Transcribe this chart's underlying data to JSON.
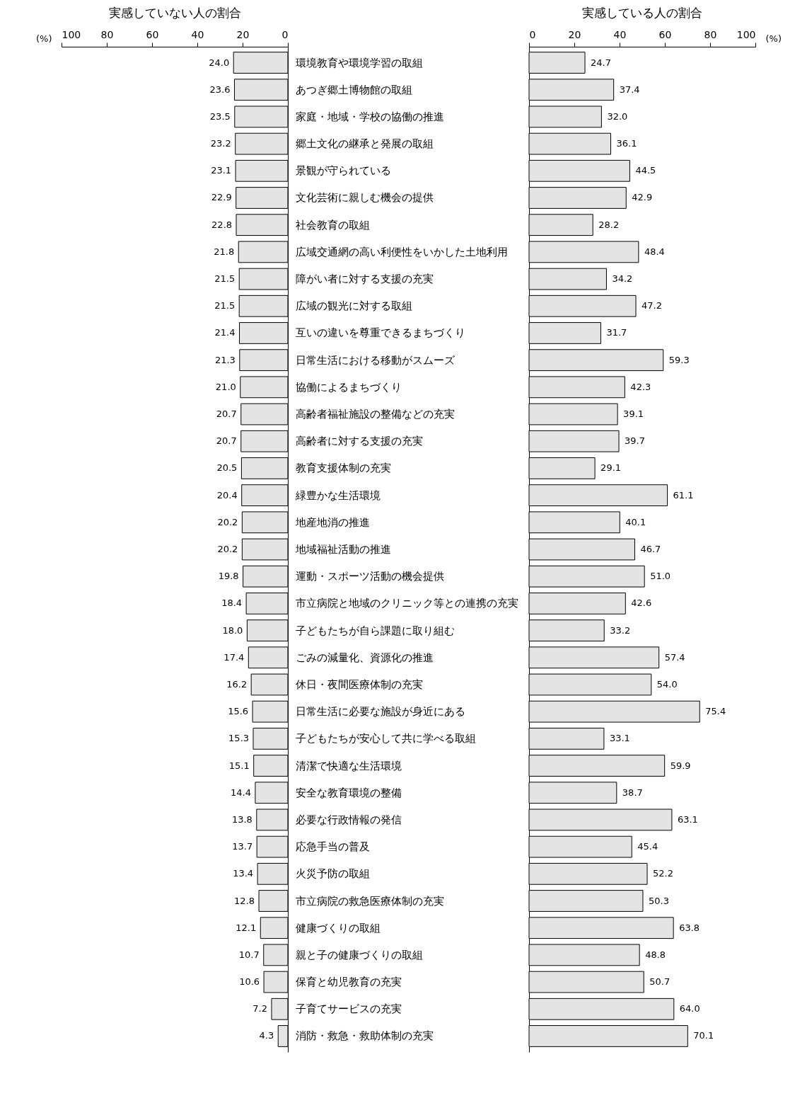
{
  "chart_data": [
    {
      "type": "bar",
      "orientation": "horizontal",
      "title": "実感していない人の割合",
      "xlabel": "(%)",
      "xlim": [
        100,
        0
      ],
      "xticks": [
        100,
        80,
        60,
        40,
        20,
        0
      ],
      "color": "#e4e4e4",
      "value_labels": [
        "24.0",
        "23.6",
        "23.5",
        "23.2",
        "23.1",
        "22.9",
        "22.8",
        "21.8",
        "21.5",
        "21.5",
        "21.4",
        "21.3",
        "21.0",
        "20.7",
        "20.7",
        "20.5",
        "20.4",
        "20.2",
        "20.2",
        "19.8",
        "18.4",
        "18.0",
        "17.4",
        "16.2",
        "15.6",
        "15.3",
        "15.1",
        "14.4",
        "13.8",
        "13.7",
        "13.4",
        "12.8",
        "12.1",
        "10.7",
        "10.6",
        "7.2",
        "4.3"
      ],
      "categories": [
        "環境教育や環境学習の取組",
        "あつぎ郷土博物館の取組",
        "家庭・地域・学校の協働の推進",
        "郷土文化の継承と発展の取組",
        "景観が守られている",
        "文化芸術に親しむ機会の提供",
        "社会教育の取組",
        "広域交通網の高い利便性をいかした土地利用",
        "障がい者に対する支援の充実",
        "広域の観光に対する取組",
        "互いの違いを尊重できるまちづくり",
        "日常生活における移動がスムーズ",
        "協働によるまちづくり",
        "高齢者福祉施設の整備などの充実",
        "高齢者に対する支援の充実",
        "教育支援体制の充実",
        "緑豊かな生活環境",
        "地産地消の推進",
        "地域福祉活動の推進",
        "運動・スポーツ活動の機会提供",
        "市立病院と地域のクリニック等との連携の充実",
        "子どもたちが自ら課題に取り組む",
        "ごみの減量化、資源化の推進",
        "休日・夜間医療体制の充実",
        "日常生活に必要な施設が身近にある",
        "子どもたちが安心して共に学べる取組",
        "清潔で快適な生活環境",
        "安全な教育環境の整備",
        "必要な行政情報の発信",
        "応急手当の普及",
        "火災予防の取組",
        "市立病院の救急医療体制の充実",
        "健康づくりの取組",
        "親と子の健康づくりの取組",
        "保育と幼児教育の充実",
        "子育てサービスの充実",
        "消防・救急・救助体制の充実"
      ],
      "values": [
        24.0,
        23.6,
        23.5,
        23.2,
        23.1,
        22.9,
        22.8,
        21.8,
        21.5,
        21.5,
        21.4,
        21.3,
        21.0,
        20.7,
        20.7,
        20.5,
        20.4,
        20.2,
        20.2,
        19.8,
        18.4,
        18.0,
        17.4,
        16.2,
        15.6,
        15.3,
        15.1,
        14.4,
        13.8,
        13.7,
        13.4,
        12.8,
        12.1,
        10.7,
        10.6,
        7.2,
        4.3
      ]
    },
    {
      "type": "bar",
      "orientation": "horizontal",
      "title": "実感している人の割合",
      "xlabel": "(%)",
      "xlim": [
        0,
        100
      ],
      "xticks": [
        0,
        20,
        40,
        60,
        80,
        100
      ],
      "color": "#e4e4e4",
      "tick_labels": "x",
      "value_labels": [
        "24.7",
        "37.4",
        "32.0",
        "36.1",
        "44.5",
        "42.9",
        "28.2",
        "48.4",
        "34.2",
        "47.2",
        "31.7",
        "59.3",
        "42.3",
        "39.1",
        "39.7",
        "29.1",
        "61.1",
        "40.1",
        "46.7",
        "51.0",
        "42.6",
        "33.2",
        "57.4",
        "54.0",
        "75.4",
        "33.1",
        "59.9",
        "38.7",
        "63.1",
        "45.4",
        "52.2",
        "50.3",
        "63.8",
        "48.8",
        "50.7",
        "64.0",
        "70.1"
      ],
      "categories": [
        null,
        null,
        null,
        null,
        null,
        null,
        null,
        null,
        null,
        null,
        null,
        null,
        null,
        null,
        null,
        null,
        null,
        null,
        null,
        null,
        null,
        null,
        null,
        null,
        null,
        null,
        null,
        null,
        null,
        null,
        null,
        null,
        null,
        null,
        null,
        null,
        null
      ],
      "values": [
        24.7,
        37.4,
        32.0,
        36.1,
        44.5,
        42.9,
        28.2,
        48.4,
        34.2,
        47.2,
        31.7,
        59.3,
        42.3,
        39.1,
        39.7,
        29.1,
        61.1,
        40.1,
        46.7,
        51.0,
        42.6,
        33.2,
        57.4,
        54.0,
        75.4,
        33.1,
        59.9,
        38.7,
        63.1,
        45.4,
        52.2,
        50.3,
        63.8,
        48.8,
        50.7,
        64.0,
        70.1
      ]
    }
  ]
}
